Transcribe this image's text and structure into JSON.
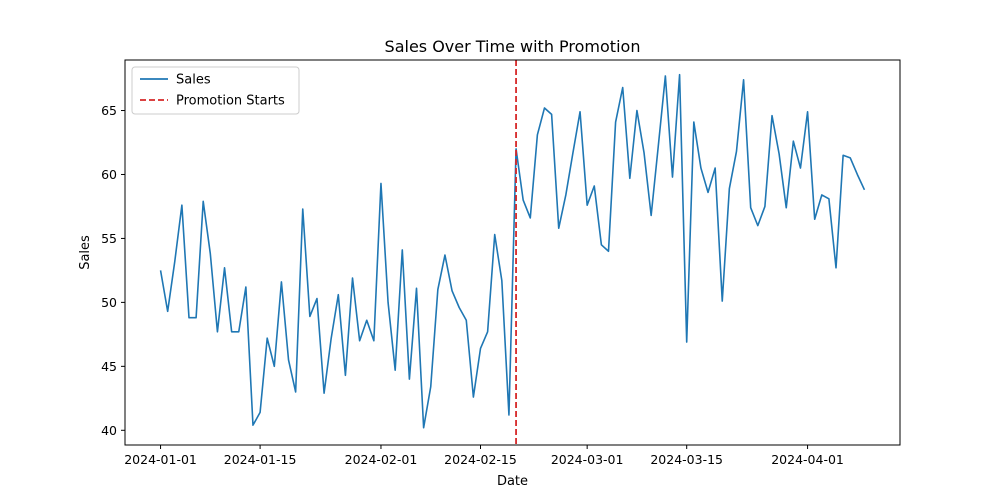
{
  "chart_data": {
    "type": "line",
    "title": "Sales Over Time with Promotion",
    "xlabel": "Date",
    "ylabel": "Sales",
    "x_start": "2024-01-01",
    "x_end": "2024-04-09",
    "xlim": [
      "2023-12-27",
      "2024-04-14"
    ],
    "ylim": [
      38.85,
      68.95
    ],
    "grid": false,
    "legend_position": "top-left",
    "x_ticks": [
      "2024-01-01",
      "2024-01-15",
      "2024-02-01",
      "2024-02-15",
      "2024-03-01",
      "2024-03-15",
      "2024-04-01"
    ],
    "y_ticks": [
      40,
      45,
      50,
      55,
      60,
      65
    ],
    "series": [
      {
        "name": "Sales",
        "color": "#1f77b4",
        "style": "solid",
        "values": [
          52.5,
          49.3,
          53.2,
          57.6,
          48.8,
          48.8,
          57.9,
          53.8,
          47.7,
          52.7,
          47.7,
          47.7,
          51.2,
          40.4,
          41.4,
          47.2,
          45.0,
          51.6,
          45.5,
          43.0,
          57.3,
          48.9,
          50.3,
          42.9,
          47.2,
          50.6,
          44.3,
          51.9,
          47.0,
          48.6,
          47.0,
          59.3,
          50.0,
          44.7,
          54.1,
          44.0,
          51.1,
          40.2,
          43.4,
          51.0,
          53.7,
          50.9,
          49.6,
          48.6,
          42.6,
          46.4,
          47.7,
          55.3,
          51.7,
          41.2,
          62.0,
          58.0,
          56.6,
          63.1,
          65.2,
          64.7,
          55.8,
          58.4,
          61.7,
          64.9,
          57.6,
          59.1,
          54.5,
          54.0,
          64.1,
          66.8,
          59.7,
          65.0,
          61.7,
          56.8,
          62.2,
          67.7,
          59.8,
          67.8,
          46.9,
          64.1,
          60.5,
          58.6,
          60.5,
          50.1,
          58.9,
          61.8,
          67.4,
          57.4,
          56.0,
          57.5,
          64.6,
          61.6,
          57.4,
          62.6,
          60.5,
          64.9,
          56.5,
          58.4,
          58.1,
          52.7,
          61.5,
          61.3,
          60.0,
          58.8
        ]
      }
    ],
    "annotations": [
      {
        "type": "vline",
        "name": "Promotion Starts",
        "x": "2024-02-20",
        "color": "#d62728",
        "style": "dashed"
      }
    ]
  }
}
